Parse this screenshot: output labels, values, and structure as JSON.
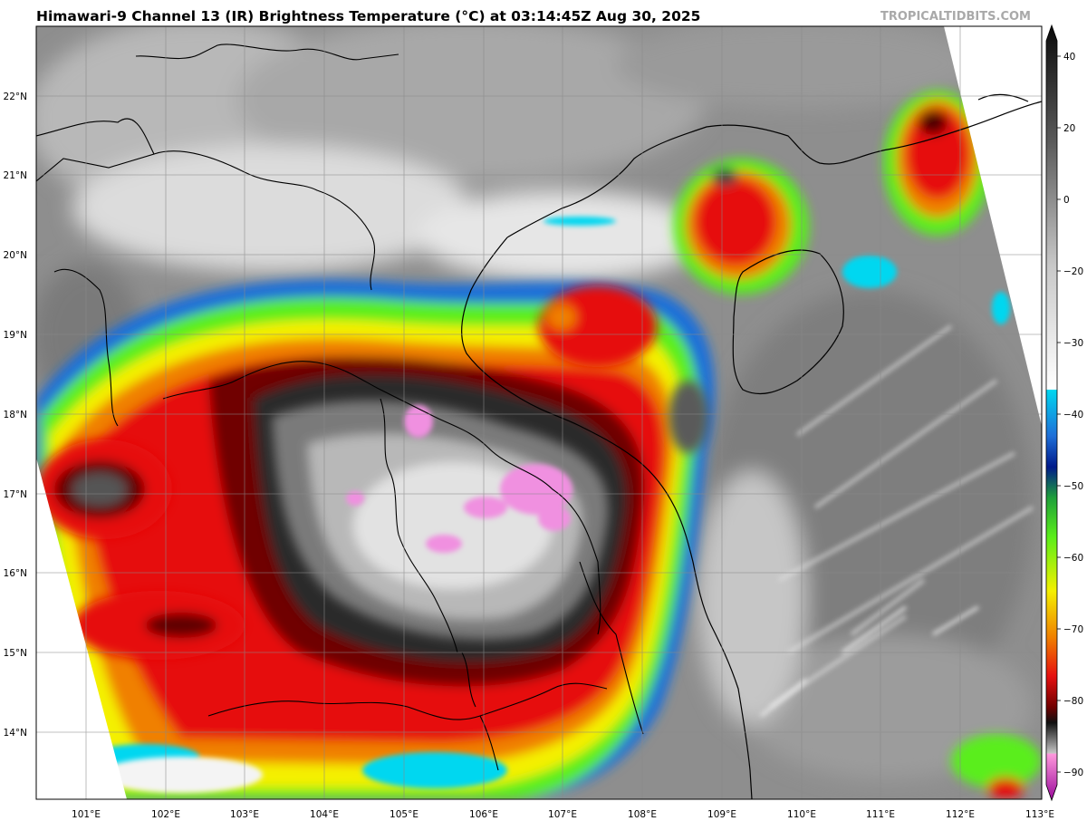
{
  "header": {
    "title": "Himawari-9 Channel 13 (IR) Brightness Temperature (°C) at 03:14:45Z Aug 30, 2025",
    "credit": "TROPICALTIDBITS.COM"
  },
  "map": {
    "product": "Infrared satellite brightness temperature",
    "lon_ticks": [
      "101°E",
      "102°E",
      "103°E",
      "104°E",
      "105°E",
      "106°E",
      "107°E",
      "108°E",
      "109°E",
      "110°E",
      "111°E",
      "112°E",
      "113°E"
    ],
    "lat_ticks": [
      "14°N",
      "15°N",
      "16°N",
      "17°N",
      "18°N",
      "19°N",
      "20°N",
      "21°N",
      "22°N"
    ],
    "lon_values": [
      101,
      102,
      103,
      104,
      105,
      106,
      107,
      108,
      109,
      110,
      111,
      112,
      113
    ],
    "lat_values": [
      14,
      15,
      16,
      17,
      18,
      19,
      20,
      21,
      22
    ],
    "colorbar": {
      "ticks": [
        "40",
        "20",
        "0",
        "−20",
        "−30",
        "−40",
        "−50",
        "−60",
        "−70",
        "−80",
        "−90"
      ],
      "tick_values": [
        40,
        20,
        0,
        -20,
        -30,
        -40,
        -50,
        -60,
        -70,
        -80,
        -90
      ]
    }
  }
}
